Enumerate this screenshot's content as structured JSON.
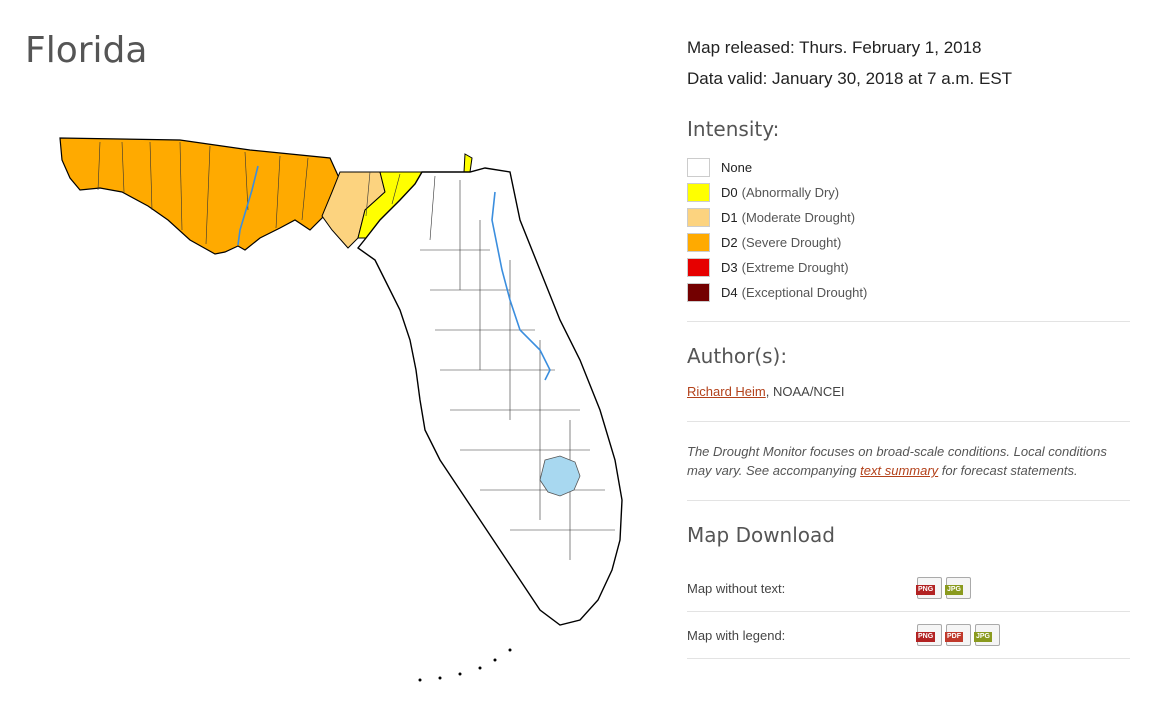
{
  "page": {
    "title": "Florida"
  },
  "info": {
    "released": "Map released: Thurs. February 1, 2018",
    "valid": "Data valid: January 30, 2018 at 7 a.m. EST"
  },
  "intensity": {
    "heading": "Intensity:",
    "items": [
      {
        "code": "None",
        "desc": "",
        "color": "#ffffff"
      },
      {
        "code": "D0",
        "desc": "(Abnormally Dry)",
        "color": "#ffff00"
      },
      {
        "code": "D1",
        "desc": "(Moderate Drought)",
        "color": "#fcd37f"
      },
      {
        "code": "D2",
        "desc": "(Severe Drought)",
        "color": "#ffaa00"
      },
      {
        "code": "D3",
        "desc": "(Extreme Drought)",
        "color": "#e60000"
      },
      {
        "code": "D4",
        "desc": "(Exceptional Drought)",
        "color": "#730000"
      }
    ]
  },
  "author": {
    "heading": "Author(s):",
    "name": "Richard Heim",
    "org": ", NOAA/NCEI"
  },
  "note": {
    "before": "The Drought Monitor focuses on broad-scale conditions. Local conditions may vary. See accompanying ",
    "link": "text summary",
    "after": " for forecast statements."
  },
  "download": {
    "heading": "Map Download",
    "rows": [
      {
        "label": "Map without text:",
        "files": [
          {
            "type": "PNG",
            "color": "#b22222"
          },
          {
            "type": "JPG",
            "color": "#8a9a1e"
          }
        ]
      },
      {
        "label": "Map with legend:",
        "files": [
          {
            "type": "PNG",
            "color": "#b22222"
          },
          {
            "type": "PDF",
            "color": "#c0392b"
          },
          {
            "type": "JPG",
            "color": "#8a9a1e"
          }
        ]
      }
    ]
  },
  "map_colors": {
    "d2": "#ffaa00",
    "d1": "#fcd37f",
    "d0": "#ffff00",
    "none": "#ffffff",
    "water": "#a8d8f0",
    "river": "#3b8ede",
    "border": "#000000"
  }
}
